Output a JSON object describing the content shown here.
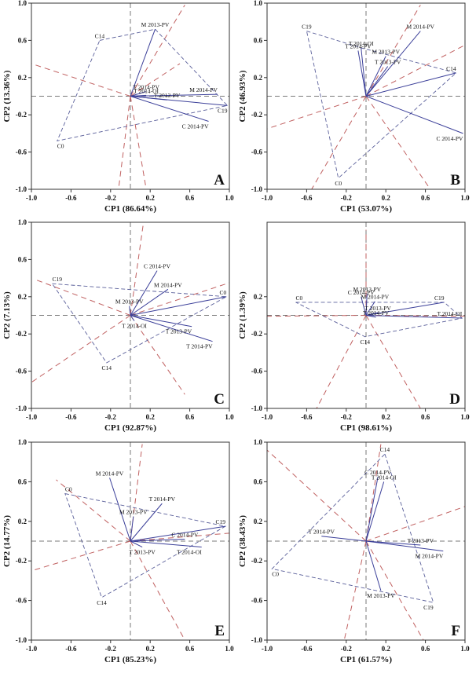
{
  "chart_data": [
    {
      "id": "A",
      "type": "scatter",
      "title": "A",
      "xlabel": "CP1 (86.64%)",
      "ylabel": "CP2 (13.36%)",
      "xlim": [
        -1.0,
        1.0
      ],
      "ylim": [
        -1.0,
        1.0
      ],
      "xticks": [
        "-1.0",
        "-0.6",
        "-0.2",
        "0.2",
        "0.6",
        "1.0"
      ],
      "yticks": [
        "1.0",
        "0.6",
        "0.2",
        "-0.2",
        "-0.6",
        "-1.0"
      ],
      "vectors": [
        {
          "label": "M 2013-PV",
          "x": 0.25,
          "y": 0.72
        },
        {
          "label": "T 2014-PV",
          "x": 0.16,
          "y": 0.05
        },
        {
          "label": "T 2014-OI",
          "x": 0.16,
          "y": 0.01
        },
        {
          "label": "M 2014-PV",
          "x": 0.88,
          "y": 0.02
        },
        {
          "label": "T 2013-PV",
          "x": 0.37,
          "y": -0.04
        },
        {
          "label": "C19",
          "x": 0.98,
          "y": -0.1
        },
        {
          "label": "C 2014-PV",
          "x": 0.79,
          "y": -0.27
        }
      ],
      "points": [
        {
          "label": "C14",
          "x": -0.31,
          "y": 0.6
        },
        {
          "label": "C0",
          "x": -0.74,
          "y": -0.48
        }
      ],
      "polygon": [
        "C14",
        "M 2013-PV",
        "C19",
        "C0"
      ],
      "rays": [
        [
          -1.0,
          0.35
        ],
        [
          0.55,
          0.98
        ],
        [
          0.5,
          0.35
        ],
        [
          0.16,
          -1.0
        ],
        [
          -0.12,
          -1.0
        ]
      ]
    },
    {
      "id": "B",
      "type": "scatter",
      "title": "B",
      "xlabel": "CP1 (53.07%)",
      "ylabel": "CP2 (46.93%)",
      "xlim": [
        -1.0,
        1.0
      ],
      "ylim": [
        -1.0,
        1.0
      ],
      "xticks": [
        "-1.0",
        "-0.6",
        "-0.2",
        "0.2",
        "0.6",
        "1.0"
      ],
      "yticks": [
        "1.0",
        "0.6",
        "0.2",
        "-0.2",
        "-0.6",
        "-1.0"
      ],
      "vectors": [
        {
          "label": "M 2014-PV",
          "x": 0.55,
          "y": 0.7
        },
        {
          "label": "T 2014-OI",
          "x": -0.05,
          "y": 0.52
        },
        {
          "label": "T 2014-PV",
          "x": -0.08,
          "y": 0.49
        },
        {
          "label": "M 2013-PV",
          "x": 0.2,
          "y": 0.43
        },
        {
          "label": "T 2013-PV",
          "x": 0.22,
          "y": 0.32
        },
        {
          "label": "C 2014-PV",
          "x": 0.98,
          "y": -0.4
        },
        {
          "label": "C14",
          "x": 0.91,
          "y": 0.25
        }
      ],
      "points": [
        {
          "label": "C19",
          "x": -0.6,
          "y": 0.7
        },
        {
          "label": "C0",
          "x": -0.28,
          "y": -0.88
        }
      ],
      "polygon": [
        "C19",
        "T 2014-OI",
        "C14",
        "C0"
      ],
      "rays": [
        [
          -1.0,
          -0.35
        ],
        [
          0.55,
          0.98
        ],
        [
          1.0,
          0.55
        ],
        [
          0.65,
          -1.0
        ],
        [
          -0.55,
          -1.0
        ]
      ]
    },
    {
      "id": "C",
      "type": "scatter",
      "title": "C",
      "xlabel": "CP1 (92.87%)",
      "ylabel": "CP2 (7.13%)",
      "xlim": [
        -1.0,
        1.0
      ],
      "ylim": [
        -1.0,
        1.0
      ],
      "xticks": [
        "-1.0",
        "-0.6",
        "-0.2",
        "0.2",
        "0.6",
        "1.0"
      ],
      "yticks": [
        "1.0",
        "0.6",
        "0.2",
        "-0.2",
        "-0.6",
        "-1.0"
      ],
      "vectors": [
        {
          "label": "C 2014-PV",
          "x": 0.27,
          "y": 0.48
        },
        {
          "label": "M 2014-PV",
          "x": 0.38,
          "y": 0.28
        },
        {
          "label": "M 2013-PV",
          "x": -0.01,
          "y": 0.1
        },
        {
          "label": "T 2014-OI",
          "x": 0.04,
          "y": -0.06
        },
        {
          "label": "T 2013-PV",
          "x": 0.62,
          "y": -0.12
        },
        {
          "label": "T 2014-PV",
          "x": 0.83,
          "y": -0.28
        },
        {
          "label": "C0",
          "x": 0.97,
          "y": 0.2
        }
      ],
      "points": [
        {
          "label": "C19",
          "x": -0.79,
          "y": 0.34
        },
        {
          "label": "C14",
          "x": -0.24,
          "y": -0.51
        }
      ],
      "polygon": [
        "C19",
        "C0",
        "C14"
      ],
      "rays": [
        [
          -1.0,
          -0.72
        ],
        [
          0.13,
          0.98
        ],
        [
          1.0,
          0.35
        ],
        [
          0.55,
          -0.85
        ],
        [
          -0.95,
          0.38
        ]
      ]
    },
    {
      "id": "D",
      "type": "scatter",
      "title": "D",
      "xlabel": "CP1 (98.61%)",
      "ylabel": "CP2 (1.39%)",
      "xlim": [
        -1.0,
        1.0
      ],
      "ylim": [
        -1.0,
        1.0
      ],
      "xticks": [
        "-1.0",
        "-0.6",
        "-0.2",
        "0.2",
        "0.6",
        "1.0"
      ],
      "yticks": [
        "0.2",
        "-0.2",
        "-0.6",
        "-1.0"
      ],
      "vectors": [
        {
          "label": "C 2014-PV",
          "x": -0.05,
          "y": 0.2
        },
        {
          "label": "M 2013-PV",
          "x": 0.01,
          "y": 0.23
        },
        {
          "label": "M 2014-PV",
          "x": 0.09,
          "y": 0.15
        },
        {
          "label": "T 2013-PV",
          "x": 0.12,
          "y": 0.03
        },
        {
          "label": "T 2014-PV",
          "x": 0.1,
          "y": -0.02
        },
        {
          "label": "T 2014-OI",
          "x": 0.97,
          "y": -0.03
        },
        {
          "label": "C19",
          "x": 0.79,
          "y": 0.14
        }
      ],
      "points": [
        {
          "label": "C0",
          "x": -0.71,
          "y": 0.14
        },
        {
          "label": "C14",
          "x": -0.01,
          "y": -0.23
        }
      ],
      "polygon": [
        "C0",
        "C19",
        "T 2014-OI",
        "C14"
      ],
      "rays": [
        [
          0.0,
          0.92
        ],
        [
          -0.5,
          -1.0
        ],
        [
          0.55,
          -1.0
        ],
        [
          -1.0,
          -0.01
        ],
        [
          1.0,
          -0.01
        ]
      ]
    },
    {
      "id": "E",
      "type": "scatter",
      "title": "E",
      "xlabel": "CP1 (85.23%)",
      "ylabel": "CP2 (14.77%)",
      "xlim": [
        -1.0,
        1.0
      ],
      "ylim": [
        -1.0,
        1.0
      ],
      "xticks": [
        "-1.0",
        "-0.6",
        "-0.2",
        "0.2",
        "0.6",
        "1.0"
      ],
      "yticks": [
        "1.0",
        "0.6",
        "0.2",
        "-0.2",
        "-0.6",
        "-1.0"
      ],
      "vectors": [
        {
          "label": "M 2014-PV",
          "x": -0.21,
          "y": 0.64
        },
        {
          "label": "T 2014-PV",
          "x": 0.32,
          "y": 0.38
        },
        {
          "label": "M 2013-PV",
          "x": 0.03,
          "y": 0.25
        },
        {
          "label": "C 2014-PV",
          "x": 0.55,
          "y": 0.02
        },
        {
          "label": "T 2013-PV",
          "x": 0.12,
          "y": -0.06
        },
        {
          "label": "T 2014-OI",
          "x": 0.72,
          "y": -0.06
        },
        {
          "label": "C19",
          "x": 0.96,
          "y": 0.15
        }
      ],
      "points": [
        {
          "label": "C0",
          "x": -0.66,
          "y": 0.48
        },
        {
          "label": "C14",
          "x": -0.29,
          "y": -0.57
        }
      ],
      "polygon": [
        "C0",
        "C19",
        "C14"
      ],
      "rays": [
        [
          0.12,
          0.98
        ],
        [
          -1.0,
          -0.3
        ],
        [
          1.0,
          0.08
        ],
        [
          0.55,
          -1.0
        ],
        [
          -0.75,
          0.62
        ]
      ]
    },
    {
      "id": "F",
      "type": "scatter",
      "title": "F",
      "xlabel": "CP1 (61.57%)",
      "ylabel": "CP2 (38.43%)",
      "xlim": [
        -1.0,
        1.0
      ],
      "ylim": [
        -1.0,
        1.0
      ],
      "xticks": [
        "-1.0",
        "-0.6",
        "-0.2",
        "0.2",
        "0.6",
        "1.0"
      ],
      "yticks": [
        "1.0",
        "0.6",
        "0.2",
        "-0.2",
        "-0.6",
        "-1.0"
      ],
      "vectors": [
        {
          "label": "C 2014-PV",
          "x": 0.12,
          "y": 0.65
        },
        {
          "label": "T 2014-OI",
          "x": 0.18,
          "y": 0.6
        },
        {
          "label": "T 2014-PV",
          "x": -0.45,
          "y": 0.05
        },
        {
          "label": "T 2013-PV",
          "x": 0.55,
          "y": -0.04
        },
        {
          "label": "M 2014-PV",
          "x": 0.78,
          "y": -0.1
        },
        {
          "label": "M 2013-PV",
          "x": 0.15,
          "y": -0.5
        }
      ],
      "points": [
        {
          "label": "C14",
          "x": 0.19,
          "y": 0.88
        },
        {
          "label": "C0",
          "x": -0.95,
          "y": -0.28
        },
        {
          "label": "C19",
          "x": 0.68,
          "y": -0.62
        }
      ],
      "polygon": [
        "C14",
        "C19",
        "C0"
      ],
      "rays": [
        [
          -1.0,
          0.92
        ],
        [
          1.0,
          0.35
        ],
        [
          -0.22,
          -1.0
        ],
        [
          0.58,
          -1.0
        ],
        [
          0.15,
          0.98
        ]
      ]
    }
  ]
}
